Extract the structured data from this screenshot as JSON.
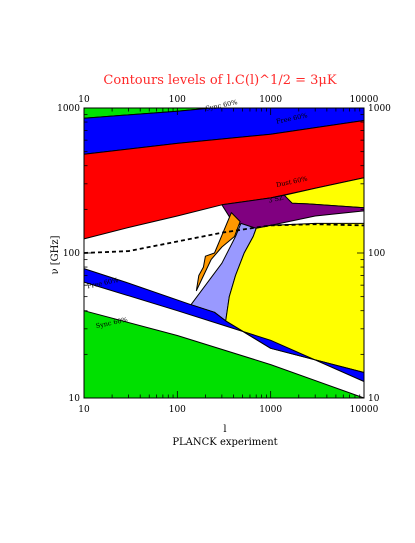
{
  "chart_data": {
    "type": "area",
    "title": "Contours levels of l.C(l)^1/2 =  3μK",
    "xlabel": "l",
    "xlabel2": "PLANCK experiment",
    "ylabel": "ν [GHz]",
    "xscale": "log",
    "yscale": "log",
    "xlim": [
      10,
      10000
    ],
    "ylim": [
      10,
      1000
    ],
    "x_ticks": [
      "10",
      "100",
      "1000",
      "10000"
    ],
    "y_ticks": [
      "10",
      "100",
      "1000"
    ],
    "grid": false,
    "colors": {
      "green": "#00e000",
      "blue": "#0000ff",
      "red": "#ff0000",
      "yellow": "#ffff00",
      "purple": "#800080",
      "orange": "#ff9900",
      "lavender": "#9999ff",
      "white": "#ffffff"
    },
    "regions": [
      {
        "color": "green",
        "points": [
          [
            10,
            1000
          ],
          [
            10,
            850
          ],
          [
            100,
            950
          ],
          [
            230,
            1000
          ]
        ]
      },
      {
        "color": "blue",
        "points": [
          [
            10,
            850
          ],
          [
            100,
            950
          ],
          [
            230,
            1000
          ],
          [
            10000,
            1000
          ],
          [
            10000,
            820
          ],
          [
            1000,
            660
          ],
          [
            100,
            570
          ],
          [
            10,
            480
          ]
        ]
      },
      {
        "color": "red",
        "points": [
          [
            10,
            480
          ],
          [
            100,
            570
          ],
          [
            1000,
            660
          ],
          [
            10000,
            820
          ],
          [
            10000,
            330
          ],
          [
            3000,
            280
          ],
          [
            1000,
            240
          ],
          [
            300,
            215
          ],
          [
            100,
            180
          ],
          [
            30,
            150
          ],
          [
            10,
            125
          ]
        ]
      },
      {
        "color": "yellow",
        "points": [
          [
            10000,
            330
          ],
          [
            3000,
            280
          ],
          [
            1400,
            250
          ],
          [
            1700,
            220
          ],
          [
            2500,
            218
          ],
          [
            10000,
            205
          ]
        ]
      },
      {
        "color": "purple",
        "points": [
          [
            300,
            215
          ],
          [
            1000,
            240
          ],
          [
            1400,
            250
          ],
          [
            1700,
            220
          ],
          [
            2500,
            218
          ],
          [
            10000,
            205
          ],
          [
            10000,
            195
          ],
          [
            3000,
            180
          ],
          [
            1000,
            155
          ],
          [
            700,
            148
          ],
          [
            400,
            160
          ]
        ]
      },
      {
        "color": "orange",
        "points": [
          [
            380,
            190
          ],
          [
            470,
            165
          ],
          [
            410,
            130
          ],
          [
            300,
            110
          ],
          [
            230,
            90
          ],
          [
            160,
            55
          ],
          [
            170,
            70
          ],
          [
            190,
            80
          ],
          [
            200,
            95
          ],
          [
            250,
            100
          ]
        ]
      },
      {
        "color": "lavender",
        "points": [
          [
            480,
            160
          ],
          [
            700,
            148
          ],
          [
            650,
            130
          ],
          [
            520,
            100
          ],
          [
            420,
            70
          ],
          [
            360,
            50
          ],
          [
            330,
            34
          ],
          [
            250,
            39
          ],
          [
            140,
            44
          ],
          [
            300,
            85
          ],
          [
            420,
            130
          ]
        ]
      },
      {
        "color": "yellow",
        "points": [
          [
            700,
            148
          ],
          [
            1000,
            155
          ],
          [
            3000,
            160
          ],
          [
            10000,
            160
          ],
          [
            10000,
            15
          ],
          [
            1000,
            22
          ],
          [
            330,
            34
          ],
          [
            360,
            50
          ],
          [
            420,
            70
          ],
          [
            520,
            100
          ],
          [
            650,
            130
          ]
        ]
      },
      {
        "color": "blue",
        "points": [
          [
            10,
            78
          ],
          [
            10,
            63
          ],
          [
            100,
            40
          ],
          [
            1000,
            25
          ],
          [
            10000,
            13
          ],
          [
            10000,
            15
          ],
          [
            1000,
            22
          ],
          [
            330,
            34
          ],
          [
            250,
            39
          ],
          [
            140,
            44
          ],
          [
            30,
            62
          ]
        ]
      },
      {
        "color": "green",
        "points": [
          [
            10,
            40
          ],
          [
            100,
            27
          ],
          [
            1000,
            17
          ],
          [
            10000,
            10
          ],
          [
            10,
            10
          ]
        ]
      }
    ],
    "dashed_line": [
      [
        10,
        100
      ],
      [
        30,
        103
      ],
      [
        100,
        120
      ],
      [
        300,
        138
      ],
      [
        700,
        150
      ],
      [
        1000,
        155
      ],
      [
        3000,
        158
      ],
      [
        10000,
        155
      ]
    ],
    "contour_labels": [
      {
        "text": "Sync 60%",
        "x": 300,
        "y": 1010
      },
      {
        "text": "Free 60%",
        "x": 1700,
        "y": 820
      },
      {
        "text": "Dust 60%",
        "x": 1700,
        "y": 300
      },
      {
        "text": "3 SZ",
        "x": 1150,
        "y": 228
      },
      {
        "text": "Free 60%",
        "x": 16,
        "y": 60
      },
      {
        "text": "Sync 60%",
        "x": 20,
        "y": 32
      }
    ]
  }
}
